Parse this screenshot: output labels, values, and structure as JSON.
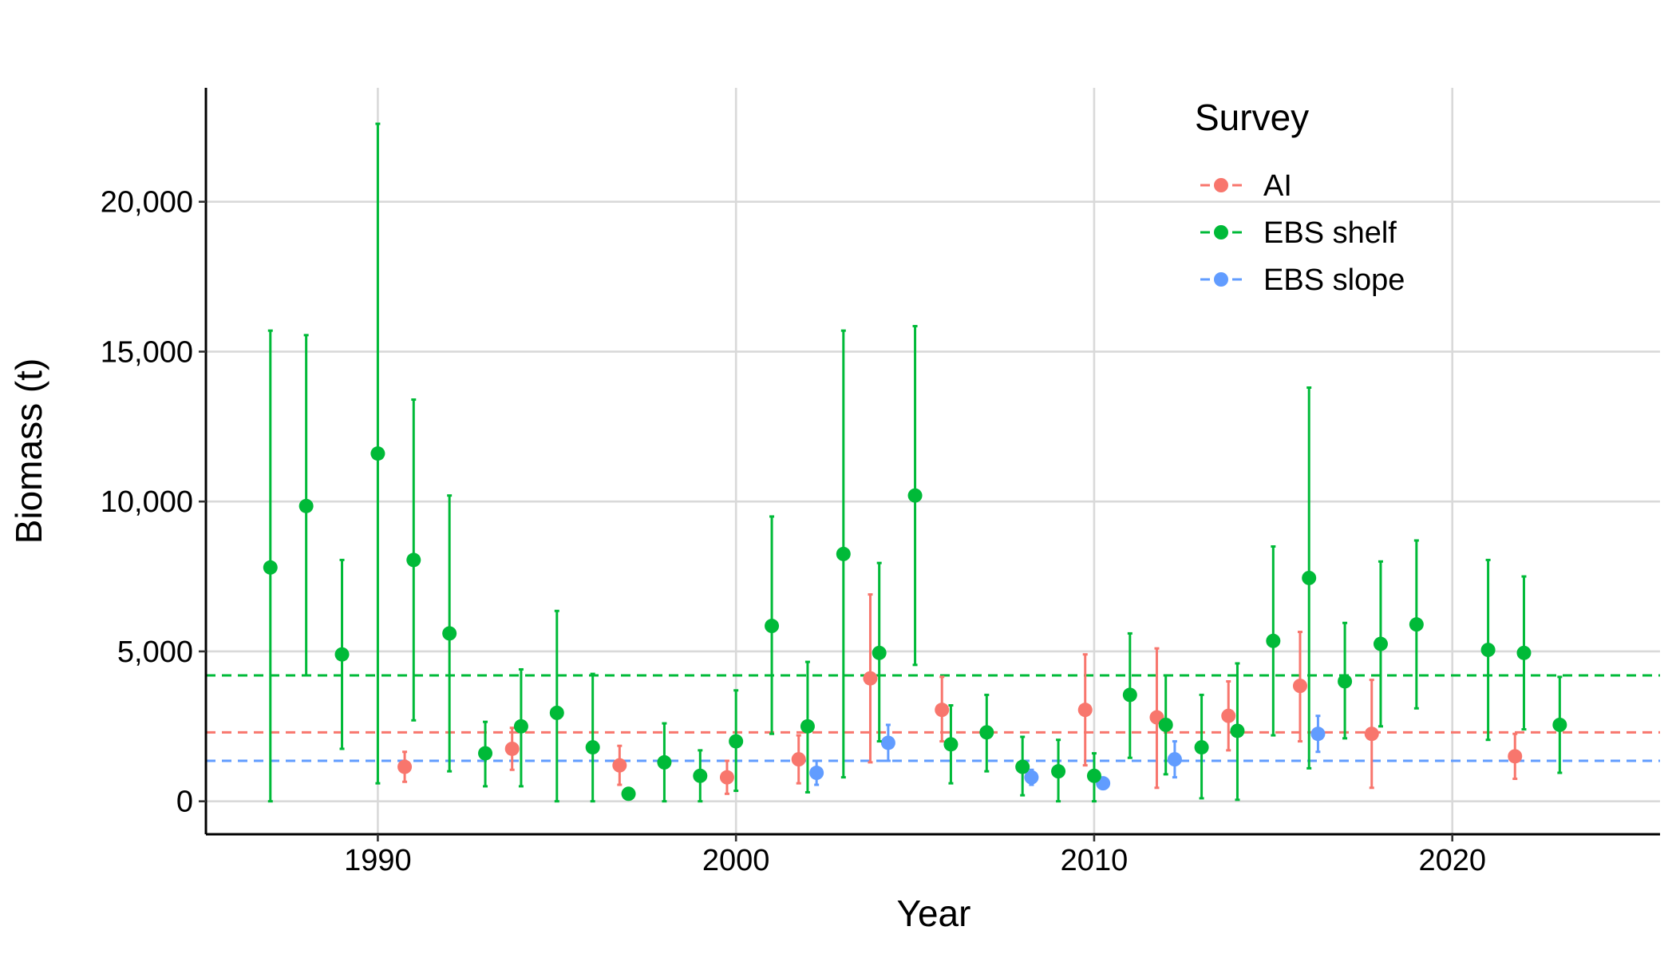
{
  "colors": {
    "AI": "#F8766D",
    "EBS shelf": "#00BA38",
    "EBS slope": "#619CFF",
    "grid": "#d9d9d9"
  },
  "chart_data": {
    "type": "scatter",
    "xlabel": "Year",
    "ylabel": "Biomass (t)",
    "xlim": [
      1985.2,
      2025.8
    ],
    "ylim": [
      -1100,
      23800
    ],
    "x_ticks": [
      1990,
      2000,
      2010,
      2020
    ],
    "y_ticks": [
      0,
      5000,
      10000,
      15000,
      20000
    ],
    "x_tick_labels": [
      "1990",
      "2000",
      "2010",
      "2020"
    ],
    "y_tick_labels": [
      "0",
      "5,000",
      "10,000",
      "15,000",
      "20,000"
    ],
    "grid": true,
    "legend": {
      "title": "Survey",
      "position": "top-right",
      "entries": [
        "AI",
        "EBS shelf",
        "EBS slope"
      ]
    },
    "series": [
      {
        "name": "AI",
        "mean_line": 2300,
        "points": [
          {
            "x": 1991,
            "y": 1150,
            "lo": 650,
            "hi": 1650
          },
          {
            "x": 1994,
            "y": 1750,
            "lo": 1050,
            "hi": 2450
          },
          {
            "x": 1997,
            "y": 1200,
            "lo": 550,
            "hi": 1850
          },
          {
            "x": 2000,
            "y": 800,
            "lo": 250,
            "hi": 1350
          },
          {
            "x": 2002,
            "y": 1400,
            "lo": 600,
            "hi": 2200
          },
          {
            "x": 2004,
            "y": 4100,
            "lo": 1300,
            "hi": 6900
          },
          {
            "x": 2006,
            "y": 3050,
            "lo": 2000,
            "hi": 4150
          },
          {
            "x": 2010,
            "y": 3050,
            "lo": 1200,
            "hi": 4900
          },
          {
            "x": 2012,
            "y": 2800,
            "lo": 450,
            "hi": 5100
          },
          {
            "x": 2014,
            "y": 2850,
            "lo": 1700,
            "hi": 4000
          },
          {
            "x": 2016,
            "y": 3850,
            "lo": 2000,
            "hi": 5650
          },
          {
            "x": 2018,
            "y": 2250,
            "lo": 450,
            "hi": 4050
          },
          {
            "x": 2022,
            "y": 1500,
            "lo": 750,
            "hi": 2250
          }
        ]
      },
      {
        "name": "EBS shelf",
        "mean_line": 4200,
        "points": [
          {
            "x": 1987,
            "y": 7800,
            "lo": 0,
            "hi": 15700
          },
          {
            "x": 1988,
            "y": 9850,
            "lo": 4200,
            "hi": 15550
          },
          {
            "x": 1989,
            "y": 4900,
            "lo": 1750,
            "hi": 8050
          },
          {
            "x": 1990,
            "y": 11600,
            "lo": 600,
            "hi": 22600
          },
          {
            "x": 1991,
            "y": 8050,
            "lo": 2700,
            "hi": 13400
          },
          {
            "x": 1992,
            "y": 5600,
            "lo": 1000,
            "hi": 10200
          },
          {
            "x": 1993,
            "y": 1600,
            "lo": 500,
            "hi": 2650
          },
          {
            "x": 1994,
            "y": 2500,
            "lo": 500,
            "hi": 4400
          },
          {
            "x": 1995,
            "y": 2950,
            "lo": 0,
            "hi": 6350
          },
          {
            "x": 1996,
            "y": 1800,
            "lo": 0,
            "hi": 4250
          },
          {
            "x": 1997,
            "y": 250,
            "lo": 150,
            "hi": 350
          },
          {
            "x": 1998,
            "y": 1300,
            "lo": 0,
            "hi": 2600
          },
          {
            "x": 1999,
            "y": 850,
            "lo": 0,
            "hi": 1700
          },
          {
            "x": 2000,
            "y": 2000,
            "lo": 350,
            "hi": 3700
          },
          {
            "x": 2001,
            "y": 5850,
            "lo": 2250,
            "hi": 9500
          },
          {
            "x": 2002,
            "y": 2500,
            "lo": 300,
            "hi": 4650
          },
          {
            "x": 2003,
            "y": 8250,
            "lo": 800,
            "hi": 15700
          },
          {
            "x": 2004,
            "y": 4950,
            "lo": 2000,
            "hi": 7950
          },
          {
            "x": 2005,
            "y": 10200,
            "lo": 4550,
            "hi": 15850
          },
          {
            "x": 2006,
            "y": 1900,
            "lo": 600,
            "hi": 3200
          },
          {
            "x": 2007,
            "y": 2300,
            "lo": 1000,
            "hi": 3550
          },
          {
            "x": 2008,
            "y": 1150,
            "lo": 200,
            "hi": 2150
          },
          {
            "x": 2009,
            "y": 1000,
            "lo": 0,
            "hi": 2050
          },
          {
            "x": 2010,
            "y": 850,
            "lo": 0,
            "hi": 1600
          },
          {
            "x": 2011,
            "y": 3550,
            "lo": 1450,
            "hi": 5600
          },
          {
            "x": 2012,
            "y": 2550,
            "lo": 900,
            "hi": 4200
          },
          {
            "x": 2013,
            "y": 1800,
            "lo": 100,
            "hi": 3550
          },
          {
            "x": 2014,
            "y": 2350,
            "lo": 50,
            "hi": 4600
          },
          {
            "x": 2015,
            "y": 5350,
            "lo": 2200,
            "hi": 8500
          },
          {
            "x": 2016,
            "y": 7450,
            "lo": 1100,
            "hi": 13800
          },
          {
            "x": 2017,
            "y": 4000,
            "lo": 2100,
            "hi": 5950
          },
          {
            "x": 2018,
            "y": 5250,
            "lo": 2500,
            "hi": 8000
          },
          {
            "x": 2019,
            "y": 5900,
            "lo": 3100,
            "hi": 8700
          },
          {
            "x": 2021,
            "y": 5050,
            "lo": 2050,
            "hi": 8050
          },
          {
            "x": 2022,
            "y": 4950,
            "lo": 2400,
            "hi": 7500
          },
          {
            "x": 2023,
            "y": 2550,
            "lo": 950,
            "hi": 4150
          }
        ]
      },
      {
        "name": "EBS slope",
        "mean_line": 1350,
        "points": [
          {
            "x": 2002,
            "y": 950,
            "lo": 550,
            "hi": 1350
          },
          {
            "x": 2004,
            "y": 1950,
            "lo": 1350,
            "hi": 2550
          },
          {
            "x": 2008,
            "y": 800,
            "lo": 550,
            "hi": 1050
          },
          {
            "x": 2010,
            "y": 600,
            "lo": 450,
            "hi": 750
          },
          {
            "x": 2012,
            "y": 1400,
            "lo": 800,
            "hi": 2000
          },
          {
            "x": 2016,
            "y": 2250,
            "lo": 1650,
            "hi": 2850
          }
        ]
      }
    ]
  }
}
